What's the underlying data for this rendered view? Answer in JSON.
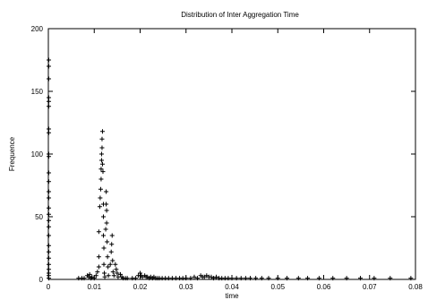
{
  "chart_data": {
    "type": "scatter",
    "title": "Distribution of Inter Aggregation Time",
    "xlabel": "time",
    "ylabel": "Frequence",
    "xlim": [
      0,
      0.08
    ],
    "ylim": [
      0,
      200
    ],
    "xticks": [
      "0",
      "0.01",
      "0.02",
      "0.03",
      "0.04",
      "0.05",
      "0.06",
      "0.07",
      "0.08"
    ],
    "yticks": [
      "0",
      "50",
      "100",
      "150",
      "200"
    ],
    "xtick_values": [
      0,
      0.01,
      0.02,
      0.03,
      0.04,
      0.05,
      0.06,
      0.07,
      0.08
    ],
    "ytick_values": [
      0,
      50,
      100,
      150,
      200
    ],
    "marker": "plus",
    "grid": false,
    "legend": "none",
    "series": [
      {
        "points": [
          [
            0.0001,
            175
          ],
          [
            0.0001,
            170
          ],
          [
            0.0001,
            160
          ],
          [
            0.0001,
            145
          ],
          [
            0.0001,
            142
          ],
          [
            0.0001,
            138
          ],
          [
            0.0001,
            120
          ],
          [
            0.0001,
            117
          ],
          [
            0.0001,
            100
          ],
          [
            0.0001,
            98
          ],
          [
            0.0001,
            85
          ],
          [
            0.0001,
            78
          ],
          [
            0.0001,
            70
          ],
          [
            0.0001,
            65
          ],
          [
            0.0001,
            57
          ],
          [
            0.0001,
            52
          ],
          [
            0.0001,
            47
          ],
          [
            0.0001,
            42
          ],
          [
            0.0001,
            35
          ],
          [
            0.0001,
            27
          ],
          [
            0.0001,
            22
          ],
          [
            0.0001,
            17
          ],
          [
            0.0001,
            12
          ],
          [
            0.0001,
            8
          ],
          [
            0.0001,
            5
          ],
          [
            0.0001,
            3
          ],
          [
            0.0001,
            1
          ],
          [
            0.0066,
            1
          ],
          [
            0.0073,
            1
          ],
          [
            0.0078,
            1
          ],
          [
            0.0085,
            3
          ],
          [
            0.0088,
            2
          ],
          [
            0.009,
            4
          ],
          [
            0.0093,
            1
          ],
          [
            0.0095,
            2
          ],
          [
            0.01,
            1
          ],
          [
            0.0104,
            3
          ],
          [
            0.0107,
            6
          ],
          [
            0.011,
            10
          ],
          [
            0.011,
            18
          ],
          [
            0.011,
            38
          ],
          [
            0.0112,
            58
          ],
          [
            0.0113,
            65
          ],
          [
            0.0114,
            72
          ],
          [
            0.0115,
            80
          ],
          [
            0.0115,
            88
          ],
          [
            0.0116,
            95
          ],
          [
            0.0116,
            100
          ],
          [
            0.0117,
            105
          ],
          [
            0.0117,
            112
          ],
          [
            0.0118,
            118
          ],
          [
            0.0118,
            92
          ],
          [
            0.0119,
            86
          ],
          [
            0.012,
            60
          ],
          [
            0.012,
            50
          ],
          [
            0.012,
            35
          ],
          [
            0.0121,
            25
          ],
          [
            0.0121,
            12
          ],
          [
            0.0122,
            5
          ],
          [
            0.0123,
            2
          ],
          [
            0.0125,
            40
          ],
          [
            0.0126,
            60
          ],
          [
            0.0126,
            70
          ],
          [
            0.0127,
            55
          ],
          [
            0.0127,
            45
          ],
          [
            0.0128,
            30
          ],
          [
            0.0129,
            18
          ],
          [
            0.013,
            10
          ],
          [
            0.0131,
            3
          ],
          [
            0.0135,
            12
          ],
          [
            0.0137,
            22
          ],
          [
            0.0138,
            28
          ],
          [
            0.0139,
            35
          ],
          [
            0.014,
            15
          ],
          [
            0.0141,
            6
          ],
          [
            0.0143,
            3
          ],
          [
            0.0146,
            12
          ],
          [
            0.0148,
            8
          ],
          [
            0.015,
            5
          ],
          [
            0.0152,
            2
          ],
          [
            0.0157,
            4
          ],
          [
            0.016,
            2
          ],
          [
            0.0163,
            1
          ],
          [
            0.0168,
            1
          ],
          [
            0.0172,
            1
          ],
          [
            0.0183,
            1
          ],
          [
            0.019,
            1
          ],
          [
            0.0196,
            3
          ],
          [
            0.02,
            5
          ],
          [
            0.0202,
            3
          ],
          [
            0.0205,
            2
          ],
          [
            0.021,
            3
          ],
          [
            0.0213,
            2
          ],
          [
            0.0216,
            2
          ],
          [
            0.022,
            1
          ],
          [
            0.0223,
            2
          ],
          [
            0.0227,
            1
          ],
          [
            0.023,
            2
          ],
          [
            0.0234,
            1
          ],
          [
            0.0238,
            1
          ],
          [
            0.0242,
            1
          ],
          [
            0.0248,
            1
          ],
          [
            0.0255,
            1
          ],
          [
            0.0262,
            1
          ],
          [
            0.027,
            1
          ],
          [
            0.0278,
            1
          ],
          [
            0.0286,
            1
          ],
          [
            0.0293,
            1
          ],
          [
            0.03,
            1
          ],
          [
            0.031,
            1
          ],
          [
            0.0318,
            2
          ],
          [
            0.0325,
            1
          ],
          [
            0.0332,
            3
          ],
          [
            0.0336,
            2
          ],
          [
            0.034,
            2
          ],
          [
            0.0345,
            3
          ],
          [
            0.035,
            2
          ],
          [
            0.0355,
            2
          ],
          [
            0.036,
            1
          ],
          [
            0.0366,
            2
          ],
          [
            0.0372,
            1
          ],
          [
            0.0378,
            1
          ],
          [
            0.0385,
            1
          ],
          [
            0.0392,
            1
          ],
          [
            0.04,
            1
          ],
          [
            0.041,
            1
          ],
          [
            0.042,
            1
          ],
          [
            0.043,
            1
          ],
          [
            0.044,
            1
          ],
          [
            0.0452,
            1
          ],
          [
            0.0465,
            1
          ],
          [
            0.048,
            1
          ],
          [
            0.05,
            1
          ],
          [
            0.052,
            1
          ],
          [
            0.0545,
            1
          ],
          [
            0.0565,
            1
          ],
          [
            0.059,
            1
          ],
          [
            0.062,
            1
          ],
          [
            0.065,
            1
          ],
          [
            0.068,
            1
          ],
          [
            0.071,
            1
          ],
          [
            0.0745,
            1
          ],
          [
            0.079,
            1
          ]
        ]
      }
    ]
  }
}
